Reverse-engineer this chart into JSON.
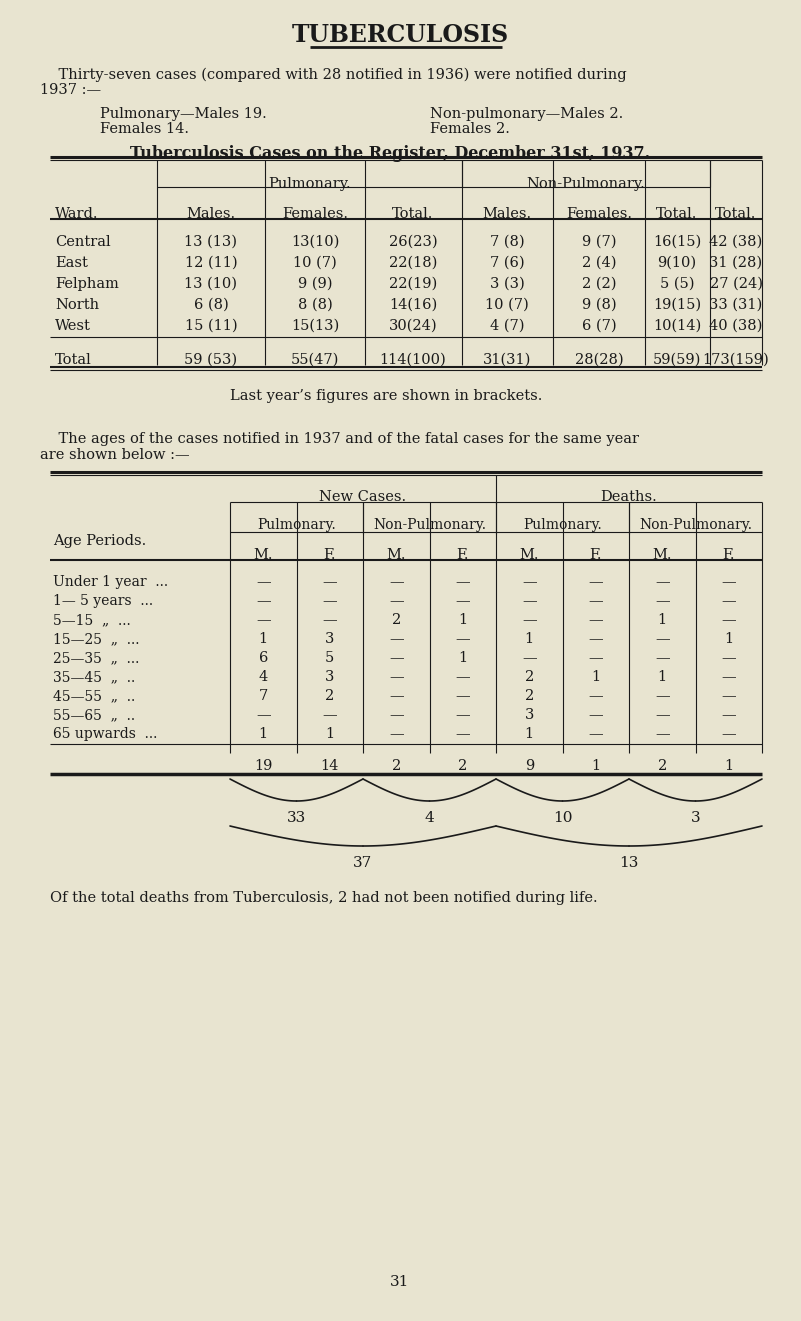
{
  "bg_color": "#e8e4d0",
  "title": "TUBERCULOSIS",
  "intro_line1": "    Thirty-seven cases (compared with 28 notified in 1936) were notified during",
  "intro_line2": "1937 :—",
  "pulmonary_line1": "Pulmonary—Males 19.",
  "pulmonary_line2": "Females 14.",
  "nonpulmonary_line1": "Non-pulmonary—Males 2.",
  "nonpulmonary_line2": "Females 2.",
  "table1_title": "Tuberculosis Cases on the Register, December 31st, 1937.",
  "table1_rows": [
    [
      "Central",
      "13 (13)",
      "13(10)",
      "26(23)",
      "7 (8)",
      "9 (7)",
      "16(15)",
      "42 (38)"
    ],
    [
      "East",
      "12 (11)",
      "10 (7)",
      "22(18)",
      "7 (6)",
      "2 (4)",
      "9(10)",
      "31 (28)"
    ],
    [
      "Felpham",
      "13 (10)",
      "9 (9)",
      "22(19)",
      "3 (3)",
      "2 (2)",
      "5 (5)",
      "27 (24)"
    ],
    [
      "North",
      "6 (8)",
      "8 (8)",
      "14(16)",
      "10 (7)",
      "9 (8)",
      "19(15)",
      "33 (31)"
    ],
    [
      "West",
      "15 (11)",
      "15(13)",
      "30(24)",
      "4 (7)",
      "6 (7)",
      "10(14)",
      "40 (38)"
    ]
  ],
  "table1_total_row": [
    "Total",
    "59 (53)",
    "55(47)",
    "114(100)",
    "31(31)",
    "28(28)",
    "59(59)",
    "173(159)"
  ],
  "bracket_note": "Last year’s figures are shown in brackets.",
  "age_intro_line1": "    The ages of the cases notified in 1937 and of the fatal cases for the same year",
  "age_intro_line2": "are shown below :—",
  "table2_row_labels": [
    "Under 1 year  ...",
    "1— 5 years  ...",
    "5—15  „  ...",
    "15—25  „  ...",
    "25—35  „  ...",
    "35—45  „  ..",
    "45—55  „  ..",
    "55—65  „  ..",
    "65 upwards  ..."
  ],
  "table2_data": [
    [
      "—",
      "—",
      "—",
      "—",
      "—",
      "—",
      "—",
      "—"
    ],
    [
      "—",
      "—",
      "—",
      "—",
      "—",
      "—",
      "—",
      "—"
    ],
    [
      "—",
      "—",
      "2",
      "1",
      "—",
      "—",
      "1",
      "—"
    ],
    [
      "1",
      "3",
      "—",
      "—",
      "1",
      "—",
      "—",
      "1"
    ],
    [
      "6",
      "5",
      "—",
      "1",
      "—",
      "—",
      "—",
      "—"
    ],
    [
      "4",
      "3",
      "—",
      "—",
      "2",
      "1",
      "1",
      "—"
    ],
    [
      "7",
      "2",
      "—",
      "—",
      "2",
      "—",
      "—",
      "—"
    ],
    [
      "—",
      "—",
      "—",
      "—",
      "3",
      "—",
      "—",
      "—"
    ],
    [
      "1",
      "1",
      "—",
      "—",
      "1",
      "—",
      "—",
      "—"
    ]
  ],
  "table2_total_row": [
    "19",
    "14",
    "2",
    "2",
    "9",
    "1",
    "2",
    "1"
  ],
  "brace_labels": [
    "33",
    "4",
    "10",
    "3"
  ],
  "brace_labels2": [
    "37",
    "13"
  ],
  "footer_note": "Of the total deaths from Tuberculosis, 2 had not been notified during life.",
  "page_number": "31"
}
